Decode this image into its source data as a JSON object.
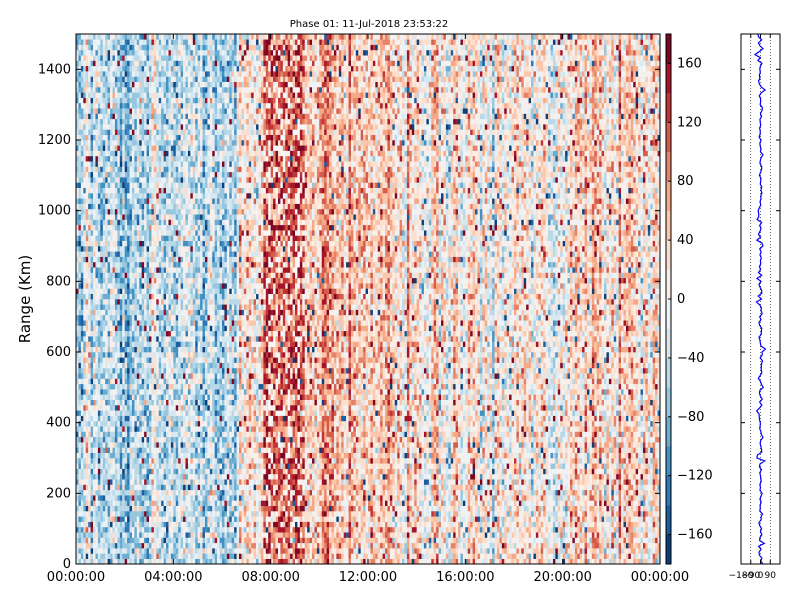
{
  "chart_data": [
    {
      "type": "heatmap",
      "title": "Phase 01: 11-Jul-2018 23:53:22",
      "xlabel": "",
      "ylabel": "Range (Km)",
      "x_tick_labels": [
        "00:00:00",
        "04:00:00",
        "08:00:00",
        "12:00:00",
        "16:00:00",
        "20:00:00",
        "00:00:00"
      ],
      "x_ticks_hours": [
        0,
        4,
        8,
        12,
        16,
        20,
        24
      ],
      "xlim_hours": [
        0,
        24
      ],
      "y_ticks": [
        0,
        200,
        400,
        600,
        800,
        1000,
        1200,
        1400
      ],
      "ylim": [
        0,
        1500
      ],
      "colormap": "RdBu_r",
      "colorbar": {
        "ticks": [
          -160,
          -120,
          -80,
          -40,
          0,
          40,
          80,
          120,
          160
        ],
        "range": [
          -180,
          180
        ],
        "levels": 18
      },
      "profile": [
        {
          "hour_start": 0,
          "hour_end": 6.6,
          "mean_phase": -40
        },
        {
          "hour_start": 6.6,
          "hour_end": 7.7,
          "mean_phase": 10
        },
        {
          "hour_start": 7.7,
          "hour_end": 9.4,
          "mean_phase": 120
        },
        {
          "hour_start": 9.4,
          "hour_end": 11,
          "mean_phase": 55
        },
        {
          "hour_start": 11,
          "hour_end": 14,
          "mean_phase": 35
        },
        {
          "hour_start": 14,
          "hour_end": 20,
          "mean_phase": 12
        },
        {
          "hour_start": 20,
          "hour_end": 24,
          "mean_phase": 25
        }
      ]
    },
    {
      "type": "line",
      "title": "",
      "x_tick_labels": [
        "-180",
        "-90",
        "0",
        "90"
      ],
      "x_ticks": [
        -180,
        -90,
        0,
        90
      ],
      "xlim": [
        -180,
        180
      ],
      "ylim": [
        0,
        1500
      ],
      "series": [
        {
          "color": "#0000ff",
          "mean_value": 0
        }
      ],
      "vertical_dotted_lines": [
        -90,
        0,
        90
      ]
    }
  ],
  "colors": {
    "line": "#0000ff",
    "axes": "#000000",
    "background": "#ffffff"
  }
}
